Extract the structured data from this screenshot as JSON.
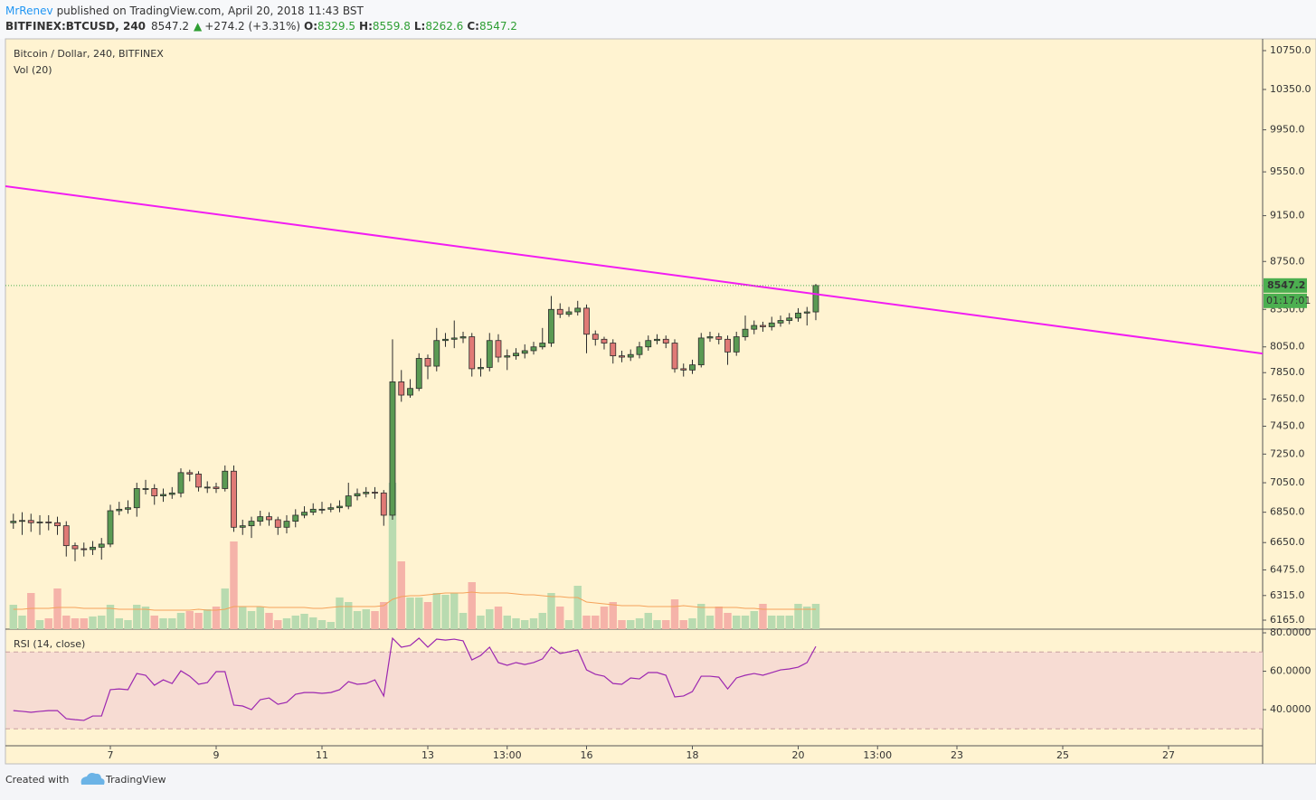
{
  "header": {
    "author": "MrRenev",
    "published": "published on TradingView.com, April 20, 2018 11:43 BST",
    "symbol": "BITFINEX:BTCUSD, 240",
    "last": 8547.2,
    "arrow": "▲",
    "change": "+274.2 (+3.31%)",
    "o_label": "O:",
    "open": 8329.5,
    "h_label": "H:",
    "high": 8559.8,
    "l_label": "L:",
    "low": 8262.6,
    "c_label": "C:",
    "close": 8547.2
  },
  "footer": {
    "created": "Created with",
    "brand": "TradingView"
  },
  "chart_data": {
    "type": "candlestick",
    "title": "Bitcoin / Dollar, 240, BITFINEX",
    "volume_label": "Vol (20)",
    "rsi_label": "RSI (14, close)",
    "x": [
      5.167,
      5.333,
      5.5,
      5.667,
      5.833,
      6,
      6.167,
      6.333,
      6.5,
      6.667,
      6.833,
      7,
      7.167,
      7.333,
      7.5,
      7.667,
      7.833,
      8,
      8.167,
      8.333,
      8.5,
      8.667,
      8.833,
      9,
      9.167,
      9.333,
      9.5,
      9.667,
      9.833,
      10,
      10.167,
      10.333,
      10.5,
      10.667,
      10.833,
      11,
      11.167,
      11.333,
      11.5,
      11.667,
      11.833,
      12,
      12.167,
      12.333,
      12.5,
      12.667,
      12.833,
      13,
      13.167,
      13.333,
      13.5,
      13.667,
      13.833,
      14,
      14.167,
      14.333,
      14.5,
      14.667,
      14.833,
      15,
      15.167,
      15.333,
      15.5,
      15.667,
      15.833,
      16,
      16.167,
      16.333,
      16.5,
      16.667,
      16.833,
      17,
      17.167,
      17.333,
      17.5,
      17.667,
      17.833,
      18,
      18.167,
      18.333,
      18.5,
      18.667,
      18.833,
      19,
      19.167,
      19.333,
      19.5,
      19.667,
      19.833,
      20,
      20.167,
      20.333
    ],
    "open": [
      6780,
      6790,
      6795,
      6780,
      6785,
      6780,
      6760,
      6630,
      6610,
      6605,
      6620,
      6640,
      6860,
      6870,
      6880,
      7010,
      7010,
      6960,
      6970,
      6980,
      7120,
      7110,
      7020,
      7020,
      7010,
      7130,
      6750,
      6760,
      6790,
      6820,
      6800,
      6750,
      6790,
      6830,
      6850,
      6870,
      6870,
      6880,
      6890,
      6960,
      6975,
      6985,
      6980,
      6830,
      7780,
      7680,
      7730,
      7960,
      7900,
      8100,
      8110,
      8120,
      8130,
      7880,
      7890,
      8100,
      7970,
      7980,
      8000,
      8020,
      8050,
      8080,
      8350,
      8310,
      8330,
      8360,
      8150,
      8110,
      8080,
      7980,
      7970,
      7990,
      8050,
      8100,
      8110,
      8080,
      7880,
      7870,
      7910,
      8120,
      8130,
      8110,
      8010,
      8130,
      8190,
      8220,
      8210,
      8240,
      8260,
      8280,
      8320,
      8329.5
    ],
    "high": [
      6840,
      6850,
      6840,
      6830,
      6830,
      6820,
      6790,
      6650,
      6650,
      6660,
      6680,
      6900,
      6920,
      6930,
      7050,
      7070,
      7040,
      7010,
      7020,
      7150,
      7140,
      7130,
      7060,
      7050,
      7170,
      7170,
      6800,
      6820,
      6860,
      6850,
      6820,
      6830,
      6870,
      6890,
      6910,
      6920,
      6910,
      6930,
      7050,
      7010,
      7020,
      7020,
      7000,
      8110,
      7870,
      7800,
      8000,
      7990,
      8200,
      8160,
      8260,
      8170,
      8160,
      7960,
      8160,
      8150,
      8030,
      8040,
      8070,
      8090,
      8200,
      8460,
      8400,
      8370,
      8420,
      8390,
      8180,
      8130,
      8110,
      8020,
      8030,
      8090,
      8140,
      8150,
      8140,
      8110,
      7920,
      7950,
      8160,
      8170,
      8160,
      8140,
      8170,
      8300,
      8260,
      8250,
      8290,
      8300,
      8320,
      8360,
      8370,
      8559.8
    ],
    "low": [
      6740,
      6700,
      6720,
      6700,
      6730,
      6700,
      6560,
      6530,
      6560,
      6570,
      6540,
      6620,
      6830,
      6840,
      6820,
      6970,
      6900,
      6920,
      6940,
      6950,
      7060,
      6990,
      6980,
      6980,
      6990,
      6720,
      6700,
      6680,
      6760,
      6760,
      6700,
      6710,
      6750,
      6810,
      6830,
      6840,
      6850,
      6850,
      6870,
      6930,
      6950,
      6940,
      6760,
      6800,
      7630,
      7660,
      7710,
      7800,
      7860,
      8050,
      8040,
      8080,
      7820,
      7820,
      7860,
      7930,
      7870,
      7950,
      7960,
      7990,
      8030,
      8050,
      8280,
      8290,
      8300,
      8000,
      8060,
      8030,
      7920,
      7930,
      7940,
      7960,
      8020,
      8070,
      8040,
      7850,
      7820,
      7840,
      7890,
      8090,
      8070,
      7910,
      7980,
      8100,
      8150,
      8170,
      8180,
      8210,
      8230,
      8250,
      8220,
      8262.6
    ],
    "close": [
      6790,
      6795,
      6780,
      6785,
      6780,
      6760,
      6630,
      6610,
      6605,
      6620,
      6640,
      6860,
      6870,
      6880,
      7010,
      7010,
      6960,
      6970,
      6980,
      7120,
      7110,
      7020,
      7020,
      7010,
      7130,
      6750,
      6760,
      6790,
      6820,
      6800,
      6750,
      6790,
      6830,
      6850,
      6870,
      6870,
      6880,
      6890,
      6960,
      6975,
      6985,
      6980,
      6830,
      7780,
      7680,
      7730,
      7960,
      7900,
      8100,
      8110,
      8120,
      8130,
      7880,
      7890,
      8100,
      7970,
      7980,
      8000,
      8020,
      8050,
      8080,
      8350,
      8310,
      8330,
      8360,
      8150,
      8110,
      8080,
      7980,
      7970,
      7990,
      8050,
      8100,
      8110,
      8080,
      7880,
      7870,
      7910,
      8120,
      8130,
      8110,
      8010,
      8130,
      8190,
      8220,
      8210,
      8240,
      8260,
      8280,
      8320,
      8329.5,
      8547.2
    ],
    "up_color": "#5a9a53",
    "down_color": "#e07a76",
    "border_color": "#2b2b2b",
    "volume": {
      "values": [
        27,
        15,
        40,
        10,
        12,
        45,
        15,
        12,
        12,
        14,
        15,
        27,
        12,
        10,
        27,
        25,
        15,
        12,
        12,
        18,
        20,
        18,
        22,
        25,
        45,
        97,
        25,
        20,
        25,
        18,
        10,
        12,
        15,
        17,
        13,
        10,
        8,
        35,
        30,
        20,
        22,
        20,
        30,
        162,
        75,
        35,
        35,
        30,
        40,
        38,
        40,
        18,
        52,
        15,
        22,
        25,
        15,
        12,
        10,
        12,
        18,
        40,
        25,
        10,
        48,
        15,
        15,
        25,
        30,
        10,
        10,
        12,
        18,
        10,
        10,
        33,
        10,
        12,
        28,
        15,
        25,
        18,
        15,
        15,
        20,
        28,
        15,
        15,
        15,
        28,
        25,
        28
      ],
      "ma": [
        22,
        22,
        23,
        23,
        23,
        24,
        24,
        24,
        23,
        23,
        23,
        23,
        22,
        22,
        22,
        22,
        21,
        21,
        21,
        21,
        21,
        22,
        21,
        21,
        22,
        25,
        25,
        25,
        25,
        24,
        24,
        24,
        24,
        24,
        23,
        23,
        24,
        25,
        25,
        25,
        25,
        25,
        26,
        33,
        36,
        37,
        37,
        38,
        39,
        40,
        40,
        40,
        41,
        40,
        40,
        40,
        40,
        39,
        38,
        38,
        37,
        36,
        36,
        35,
        35,
        30,
        29,
        28,
        27,
        26,
        26,
        26,
        25,
        25,
        25,
        25,
        26,
        25,
        24,
        24,
        24,
        24,
        24,
        23,
        23,
        22,
        22,
        22,
        22,
        22,
        22,
        22
      ],
      "ylim": [
        0,
        653
      ],
      "up_color": "#b9dbb0",
      "down_color": "#f5b3a9",
      "ma_color": "#f5a25a"
    },
    "log_scale": true,
    "grid": false,
    "xlim": [
      5.017,
      28.778
    ],
    "xticks": [
      7,
      9,
      11,
      13,
      {
        "value": 14.5,
        "label": "13:00"
      },
      16,
      18,
      20,
      {
        "value": 21.5,
        "label": "13:00"
      },
      23,
      25,
      27
    ],
    "ylim": [
      6111,
      10874
    ],
    "yticks": [
      {
        "value": 10750,
        "label": "10750.0"
      },
      {
        "value": 10350,
        "label": "10350.0"
      },
      {
        "value": 9950,
        "label": "9950.0"
      },
      {
        "value": 9550,
        "label": "9550.0"
      },
      {
        "value": 9150,
        "label": "9150.0"
      },
      {
        "value": 8750,
        "label": "8750.0"
      },
      {
        "value": 8350,
        "label": "8350.0"
      },
      {
        "value": 8050,
        "label": "8050.0"
      },
      {
        "value": 7850,
        "label": "7850.0"
      },
      {
        "value": 7650,
        "label": "7650.0"
      },
      {
        "value": 7450,
        "label": "7450.0"
      },
      {
        "value": 7250,
        "label": "7250.0"
      },
      {
        "value": 7050,
        "label": "7050.0"
      },
      {
        "value": 6850,
        "label": "6850.0"
      },
      {
        "value": 6650,
        "label": "6650.0"
      },
      {
        "value": 6475,
        "label": "6475.0"
      },
      {
        "value": 6315,
        "label": "6315.0"
      },
      {
        "value": 6165,
        "label": "6165.0"
      }
    ],
    "trendline": {
      "x": [
        5.017,
        28.778
      ],
      "values": [
        9417,
        7998
      ],
      "color": "#f21cf2"
    },
    "last_price": {
      "value": 8547.2,
      "countdown": "01:17:01",
      "color": "#4caf50"
    },
    "rsi": {
      "values": [
        39.5,
        39.1,
        38.6,
        39.1,
        39.5,
        39.5,
        35.3,
        34.8,
        34.4,
        36.7,
        36.7,
        50.4,
        50.8,
        50.4,
        58.8,
        57.9,
        52.7,
        55.5,
        53.6,
        60.2,
        57.4,
        53.2,
        54.1,
        59.8,
        59.8,
        42.4,
        41.9,
        40,
        45.2,
        46.1,
        42.8,
        43.8,
        48,
        48.9,
        48.9,
        48.5,
        48.9,
        50.4,
        54.6,
        53.2,
        53.6,
        55.5,
        47.1,
        77.2,
        72.5,
        73.4,
        77.2,
        72.5,
        76.7,
        76.2,
        76.7,
        75.8,
        65.9,
        68.2,
        72.5,
        64.5,
        63.1,
        64.5,
        63.5,
        64.5,
        66.4,
        72.5,
        69.2,
        70.1,
        71.1,
        60.7,
        58.4,
        57.4,
        53.6,
        53.2,
        56.5,
        56,
        59.3,
        59.3,
        57.9,
        46.6,
        47.1,
        49.4,
        57.4,
        57.4,
        56.9,
        50.8,
        56.5,
        57.9,
        58.8,
        57.9,
        59.3,
        60.7,
        61.2,
        62.1,
        64.5,
        72.9
      ],
      "ylim": [
        21.2,
        81.9
      ],
      "yticks": [
        {
          "value": 80,
          "label": "80.0000"
        },
        {
          "value": 60,
          "label": "60.0000"
        },
        {
          "value": 40,
          "label": "40.0000"
        }
      ],
      "bands": [
        70,
        30
      ],
      "color": "#9c27b0",
      "band_color": "#f7dcd3"
    }
  }
}
